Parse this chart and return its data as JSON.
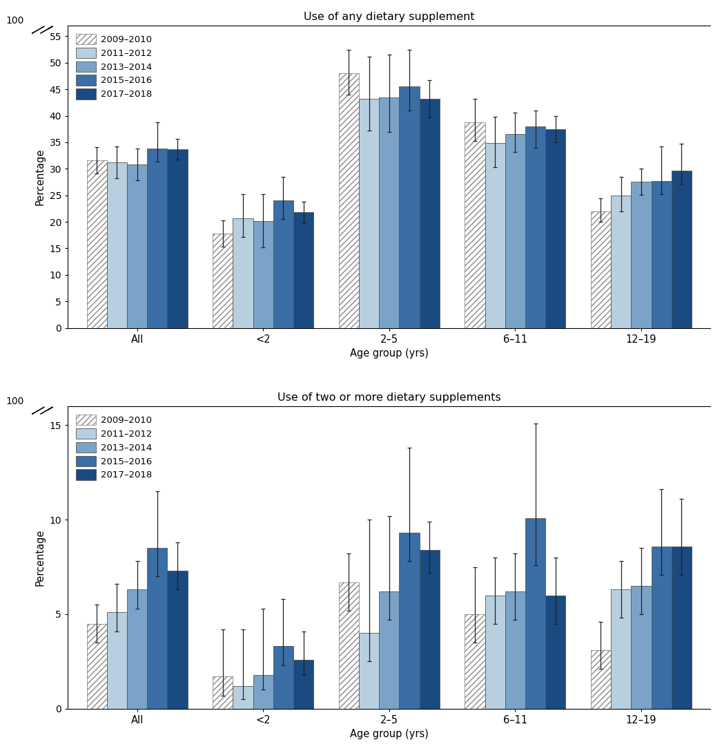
{
  "chart1": {
    "title": "Use of any dietary supplement",
    "categories": [
      "All",
      "<2",
      "2–5",
      "6–11",
      "12–19"
    ],
    "series": [
      {
        "label": "2009–2010",
        "values": [
          31.6,
          17.8,
          48.0,
          38.7,
          22.0
        ],
        "errors_low": [
          2.5,
          2.5,
          4.0,
          3.5,
          2.0
        ],
        "errors_high": [
          2.5,
          2.5,
          4.5,
          4.5,
          2.5
        ]
      },
      {
        "label": "2011–2012",
        "values": [
          31.2,
          20.7,
          43.2,
          34.8,
          25.0
        ],
        "errors_low": [
          3.0,
          3.5,
          6.0,
          4.5,
          3.0
        ],
        "errors_high": [
          3.0,
          4.5,
          8.0,
          5.0,
          3.5
        ]
      },
      {
        "label": "2013–2014",
        "values": [
          30.8,
          20.2,
          43.5,
          36.6,
          27.6
        ],
        "errors_low": [
          3.0,
          5.0,
          6.5,
          3.5,
          2.5
        ],
        "errors_high": [
          3.0,
          5.0,
          8.0,
          4.0,
          2.5
        ]
      },
      {
        "label": "2015–2016",
        "values": [
          33.8,
          24.0,
          45.5,
          38.0,
          27.7
        ],
        "errors_low": [
          2.5,
          3.5,
          4.5,
          4.0,
          2.5
        ],
        "errors_high": [
          5.0,
          4.5,
          7.0,
          3.0,
          6.5
        ]
      },
      {
        "label": "2017–2018",
        "values": [
          33.7,
          21.8,
          43.2,
          37.5,
          29.7
        ],
        "errors_low": [
          2.0,
          2.0,
          3.5,
          2.5,
          2.5
        ],
        "errors_high": [
          2.0,
          2.0,
          3.5,
          2.5,
          5.0
        ]
      }
    ]
  },
  "chart2": {
    "title": "Use of two or more dietary supplements",
    "categories": [
      "All",
      "<2",
      "2–5",
      "6–11",
      "12–19"
    ],
    "series": [
      {
        "label": "2009–2010",
        "values": [
          4.5,
          1.7,
          6.7,
          5.0,
          3.1
        ],
        "errors_low": [
          1.0,
          1.0,
          1.5,
          1.5,
          1.0
        ],
        "errors_high": [
          1.0,
          2.5,
          1.5,
          2.5,
          1.5
        ]
      },
      {
        "label": "2011–2012",
        "values": [
          5.1,
          1.2,
          4.0,
          6.0,
          6.3
        ],
        "errors_low": [
          1.0,
          0.7,
          1.5,
          1.5,
          1.5
        ],
        "errors_high": [
          1.5,
          3.0,
          6.0,
          2.0,
          1.5
        ]
      },
      {
        "label": "2013–2014",
        "values": [
          6.3,
          1.8,
          6.2,
          6.2,
          6.5
        ],
        "errors_low": [
          1.0,
          0.8,
          1.5,
          1.5,
          1.5
        ],
        "errors_high": [
          1.5,
          3.5,
          4.0,
          2.0,
          2.0
        ]
      },
      {
        "label": "2015–2016",
        "values": [
          8.5,
          3.3,
          9.3,
          10.1,
          8.6
        ],
        "errors_low": [
          1.5,
          1.0,
          1.5,
          2.5,
          1.5
        ],
        "errors_high": [
          3.0,
          2.5,
          4.5,
          5.0,
          3.0
        ]
      },
      {
        "label": "2017–2018",
        "values": [
          7.3,
          2.6,
          8.4,
          6.0,
          8.6
        ],
        "errors_low": [
          1.0,
          0.8,
          1.2,
          1.5,
          1.5
        ],
        "errors_high": [
          1.5,
          1.5,
          1.5,
          2.0,
          2.5
        ]
      }
    ]
  },
  "colors": [
    "white",
    "#b8cfe0",
    "#7ba3c8",
    "#3a6ea5",
    "#1a4a80"
  ],
  "hatch": [
    "////",
    "",
    "",
    "",
    ""
  ],
  "hatch_edgecolor": "#888888",
  "bar_edge_color": "#555555",
  "error_color": "#333333",
  "ylabel": "Percentage",
  "xlabel": "Age group (yrs)",
  "yticks1": [
    0,
    5,
    10,
    15,
    20,
    25,
    30,
    35,
    40,
    45,
    50,
    55
  ],
  "yticks2": [
    0,
    5,
    10,
    15
  ],
  "bar_width": 0.16,
  "figure_width": 10.46,
  "figure_height": 10.87
}
